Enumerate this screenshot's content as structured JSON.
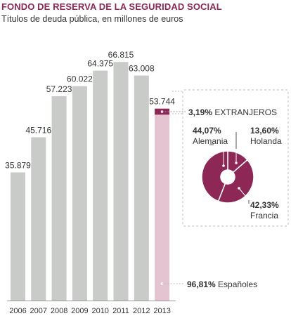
{
  "title": "FONDO DE RESERVA DE LA SEGURIDAD SOCIAL",
  "subtitle": "Títulos de deuda pública, en millones de euros",
  "colors": {
    "bar": "#c8cbc8",
    "accent": "#8c2756",
    "highlight_bar": "#e3c4d0",
    "text": "#333333",
    "border": "#bdbdbd"
  },
  "chart_data": [
    {
      "type": "bar",
      "title": "",
      "categories": [
        "2006",
        "2007",
        "2008",
        "2009",
        "2010",
        "2011",
        "2012",
        "2013"
      ],
      "values": [
        35879,
        45716,
        57223,
        60022,
        64375,
        66815,
        63008,
        53744
      ],
      "value_labels": [
        "35.879",
        "45.716",
        "57.223",
        "60.022",
        "64.375",
        "66.815",
        "63.008",
        "53.744"
      ],
      "xlabel": "",
      "ylabel": "",
      "ylim": [
        0,
        70000
      ],
      "grid": false,
      "stacked_last_bar": {
        "category": "2013",
        "segments": [
          {
            "label": "EXTRANJEROS",
            "pct_label": "3,19%",
            "percent": 3.19,
            "color": "#8c2756"
          },
          {
            "label": "Españoles",
            "pct_label": "96,81%",
            "percent": 96.81,
            "color": "#e3c4d0"
          }
        ]
      }
    },
    {
      "type": "pie",
      "title": "",
      "donut": true,
      "slices": [
        {
          "name": "Holanda",
          "pct_label": "13,60%",
          "value": 13.6
        },
        {
          "name": "Francia",
          "pct_label": "42,33%",
          "value": 42.33
        },
        {
          "name": "Alemania",
          "pct_label": "44,07%",
          "value": 44.07
        }
      ]
    }
  ]
}
